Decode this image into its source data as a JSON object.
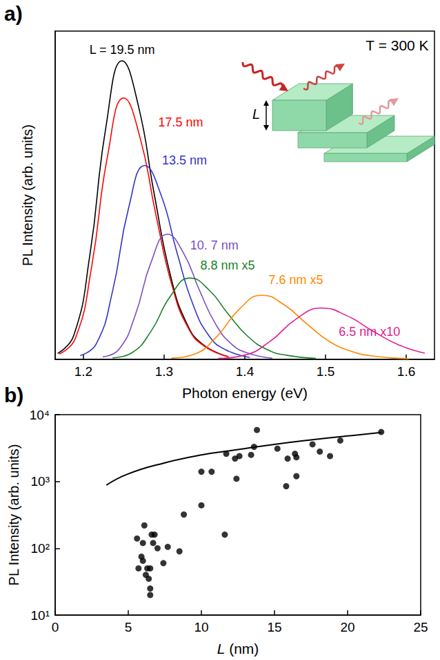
{
  "chart_data": [
    {
      "type": "line",
      "panel_label": "a)",
      "annotations": [
        "T = 300 K"
      ],
      "inset_label": "L",
      "x_label": "Photon energy (eV)",
      "y_label": "PL Intensity (arb. units)",
      "xlim": [
        1.165,
        1.635
      ],
      "xticks": [
        1.2,
        1.3,
        1.4,
        1.5,
        1.6
      ],
      "ylim": [
        0,
        105
      ],
      "tick_labels": "x",
      "grid": false,
      "series": [
        {
          "name": "L = 19.5 nm",
          "color": "#000000",
          "x": [
            1.168,
            1.188,
            1.208,
            1.228,
            1.248,
            1.268,
            1.288,
            1.308,
            1.328,
            1.348,
            1.378
          ],
          "values": [
            1.9,
            7.6,
            33.4,
            74.5,
            95.5,
            81.2,
            52.5,
            26.7,
            11.5,
            4.8,
            1.0
          ]
        },
        {
          "name": "17.5 nm",
          "color": "#ff0000",
          "x": [
            1.17,
            1.19,
            1.21,
            1.23,
            1.25,
            1.27,
            1.29,
            1.31,
            1.33,
            1.35,
            1.38
          ],
          "values": [
            1.7,
            6.7,
            29.3,
            65.2,
            83.6,
            71.1,
            46.0,
            23.4,
            10.0,
            4.2,
            0.8
          ]
        },
        {
          "name": "13.5 nm",
          "color": "#3333cc",
          "x": [
            1.196,
            1.216,
            1.236,
            1.256,
            1.276,
            1.296,
            1.316,
            1.336,
            1.356,
            1.376,
            1.406
          ],
          "values": [
            1.2,
            5.0,
            21.7,
            48.4,
            62,
            52.7,
            34.1,
            17.4,
            7.4,
            3.1,
            0.6
          ]
        },
        {
          "name": "10. 7 nm",
          "color": "#7b4fc0",
          "x": [
            1.224,
            1.244,
            1.264,
            1.284,
            1.304,
            1.324,
            1.344,
            1.364,
            1.384,
            1.404,
            1.434
          ],
          "values": [
            0.8,
            3.2,
            14.0,
            31.2,
            40,
            34,
            22,
            11.2,
            4.8,
            2.0,
            0.4
          ]
        },
        {
          "name": "8.8 nm x5",
          "color": "#1b7f2a",
          "x": [
            1.236,
            1.26,
            1.284,
            1.308,
            1.332,
            1.356,
            1.38,
            1.404,
            1.428,
            1.452,
            1.488
          ],
          "values": [
            0.5,
            2.1,
            9.1,
            20.3,
            26,
            22.1,
            14.3,
            7.3,
            3.1,
            1.3,
            0.3
          ]
        },
        {
          "name": "7.6 nm x5",
          "color": "#ff8800",
          "x": [
            1.309,
            1.337,
            1.365,
            1.393,
            1.421,
            1.449,
            1.477,
            1.505,
            1.533,
            1.561,
            1.603
          ],
          "values": [
            0.4,
            1.6,
            7.2,
            16.0,
            20.5,
            17.4,
            11.3,
            5.7,
            2.5,
            1.0,
            0.2
          ]
        },
        {
          "name": "6.5 nm x10",
          "color": "#e0208f",
          "x": [
            1.367,
            1.399,
            1.431,
            1.463,
            1.495,
            1.527,
            1.559,
            1.591,
            1.623
          ],
          "values": [
            0.3,
            1.3,
            5.7,
            12.8,
            16.4,
            13.9,
            9.0,
            4.6,
            2.0
          ]
        }
      ]
    },
    {
      "type": "scatter",
      "panel_label": "b)",
      "x_label": "L (nm)",
      "y_label": "PL Intensity (arb. units)",
      "log": "y",
      "grid": false,
      "xlim": [
        0,
        25
      ],
      "xticks": [
        0,
        5,
        10,
        15,
        20,
        25
      ],
      "ylim": [
        10,
        10000
      ],
      "yticks": [
        {
          "value": 10,
          "label": "10¹"
        },
        {
          "value": 100,
          "label": "10²"
        },
        {
          "value": 1000,
          "label": "10³"
        },
        {
          "value": 10000,
          "label": "10⁴"
        }
      ],
      "series": [
        {
          "type": "scatter",
          "color": "#000000",
          "marker": "circle",
          "x": [
            22.3,
            19.5,
            18.8,
            18.1,
            17.6,
            16.5,
            16.4,
            16.5,
            15.9,
            15.8,
            15.2,
            13.8,
            13.6,
            13.4,
            12.6,
            12.3,
            12.4,
            11.7,
            11.6,
            10.7,
            10.0,
            10.0,
            8.8,
            8.5,
            7.7,
            7.4,
            7.0,
            6.8,
            6.6,
            6.7,
            5.6,
            5.7,
            5.9,
            6.0,
            6.1,
            6.2,
            6.0,
            6.3,
            6.4,
            6.5,
            6.5,
            6.5
          ],
          "values": [
            5500,
            4100,
            2400,
            2800,
            3600,
            2300,
            2600,
            1200,
            2200,
            850,
            3100,
            5900,
            3300,
            2500,
            2400,
            2200,
            1100,
            2600,
            160,
            1400,
            1400,
            440,
            320,
            90,
            105,
            60,
            100,
            160,
            160,
            120,
            140,
            50,
            75,
            65,
            220,
            40,
            120,
            50,
            35,
            50,
            25,
            20
          ]
        },
        {
          "type": "line",
          "color": "#000000",
          "line_style": "solid",
          "x": [
            3.5,
            5,
            7.5,
            10,
            12.5,
            15,
            17.5,
            20,
            22.3
          ],
          "values": [
            880,
            1300,
            1900,
            2500,
            3000,
            3600,
            4200,
            4800,
            5400
          ]
        }
      ]
    }
  ]
}
